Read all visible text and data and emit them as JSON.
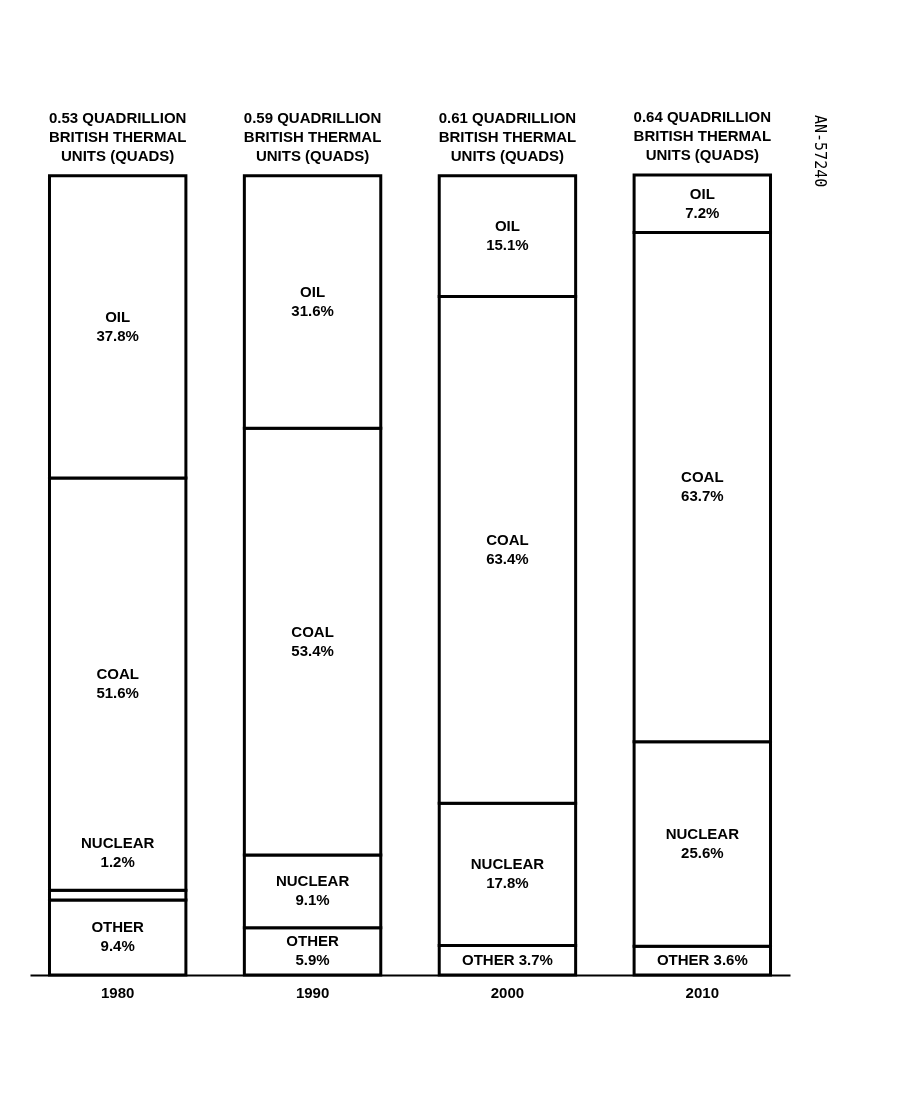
{
  "chart_data": {
    "type": "bar",
    "stacked": true,
    "categories": [
      "1980",
      "1990",
      "2000",
      "2010"
    ],
    "series": [
      {
        "name": "OTHER",
        "color": "#ffffff",
        "values": [
          9.4,
          5.9,
          3.7,
          3.6
        ],
        "value_labels": [
          "9.4%",
          "5.9%",
          "3.7%",
          "3.6%"
        ]
      },
      {
        "name": "NUCLEAR",
        "color": "#ffffff",
        "values": [
          1.2,
          9.1,
          17.8,
          25.6
        ],
        "value_labels": [
          "1.2%",
          "9.1%",
          "17.8%",
          "25.6%"
        ]
      },
      {
        "name": "COAL",
        "color": "#ffffff",
        "values": [
          51.6,
          53.4,
          63.4,
          63.7
        ],
        "value_labels": [
          "51.6%",
          "53.4%",
          "63.4%",
          "63.7%"
        ]
      },
      {
        "name": "OIL",
        "color": "#ffffff",
        "values": [
          37.8,
          31.6,
          15.1,
          7.2
        ],
        "value_labels": [
          "37.8%",
          "31.6%",
          "15.1%",
          "7.2%"
        ]
      }
    ],
    "annotations": [
      "0.53 QUADRILLION BRITISH THERMAL UNITS (QUADS)",
      "0.59 QUADRILLION BRITISH THERMAL UNITS (QUADS)",
      "0.61 QUADRILLION BRITISH THERMAL UNITS (QUADS)",
      "0.64 QUADRILLION BRITISH THERMAL UNITS (QUADS)",
      "AN-57240"
    ]
  }
}
